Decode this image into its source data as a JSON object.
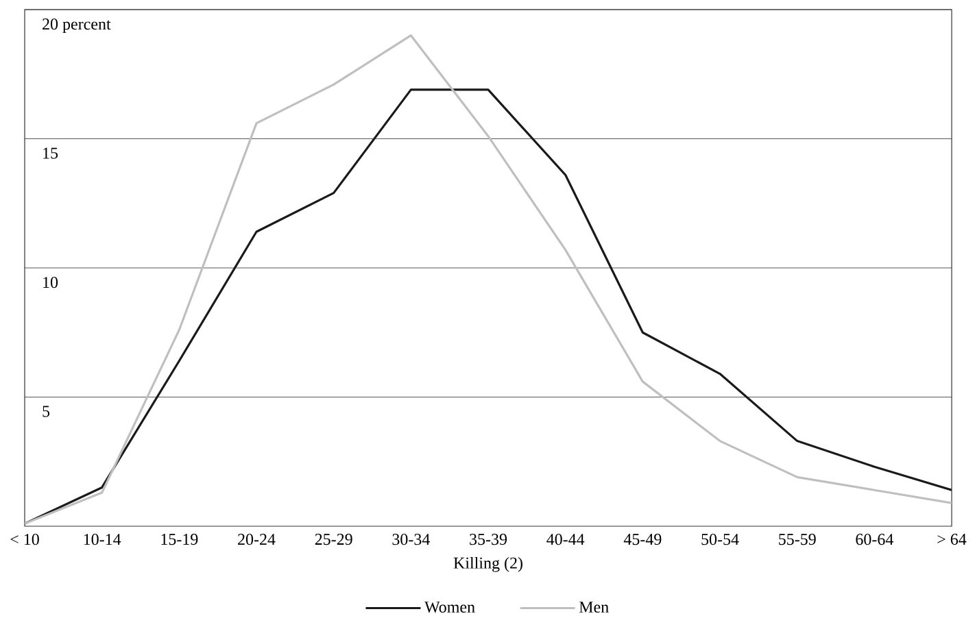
{
  "chart_data": {
    "type": "line",
    "xlabel": "Killing (2)",
    "categories": [
      "< 10",
      "10-14",
      "15-19",
      "20-24",
      "25-29",
      "30-34",
      "35-39",
      "40-44",
      "45-49",
      "50-54",
      "55-59",
      "60-64",
      "> 64"
    ],
    "series": [
      {
        "name": "Women",
        "color": "#1a1a1a",
        "values": [
          0.1,
          1.5,
          6.4,
          11.4,
          12.9,
          16.9,
          16.9,
          13.6,
          7.5,
          5.9,
          3.3,
          2.3,
          1.4
        ]
      },
      {
        "name": "Men",
        "color": "#bfbfbf",
        "values": [
          0.1,
          1.3,
          7.6,
          15.6,
          17.1,
          19.0,
          15.1,
          10.7,
          5.6,
          3.3,
          1.9,
          1.4,
          0.9
        ]
      }
    ],
    "ylim": [
      0,
      20
    ],
    "yticks": [
      5,
      10,
      15,
      {
        "value": 20,
        "label": "20 percent"
      }
    ],
    "grid": "y",
    "legend": "bottom",
    "marker": "none",
    "line_style": "solid"
  }
}
